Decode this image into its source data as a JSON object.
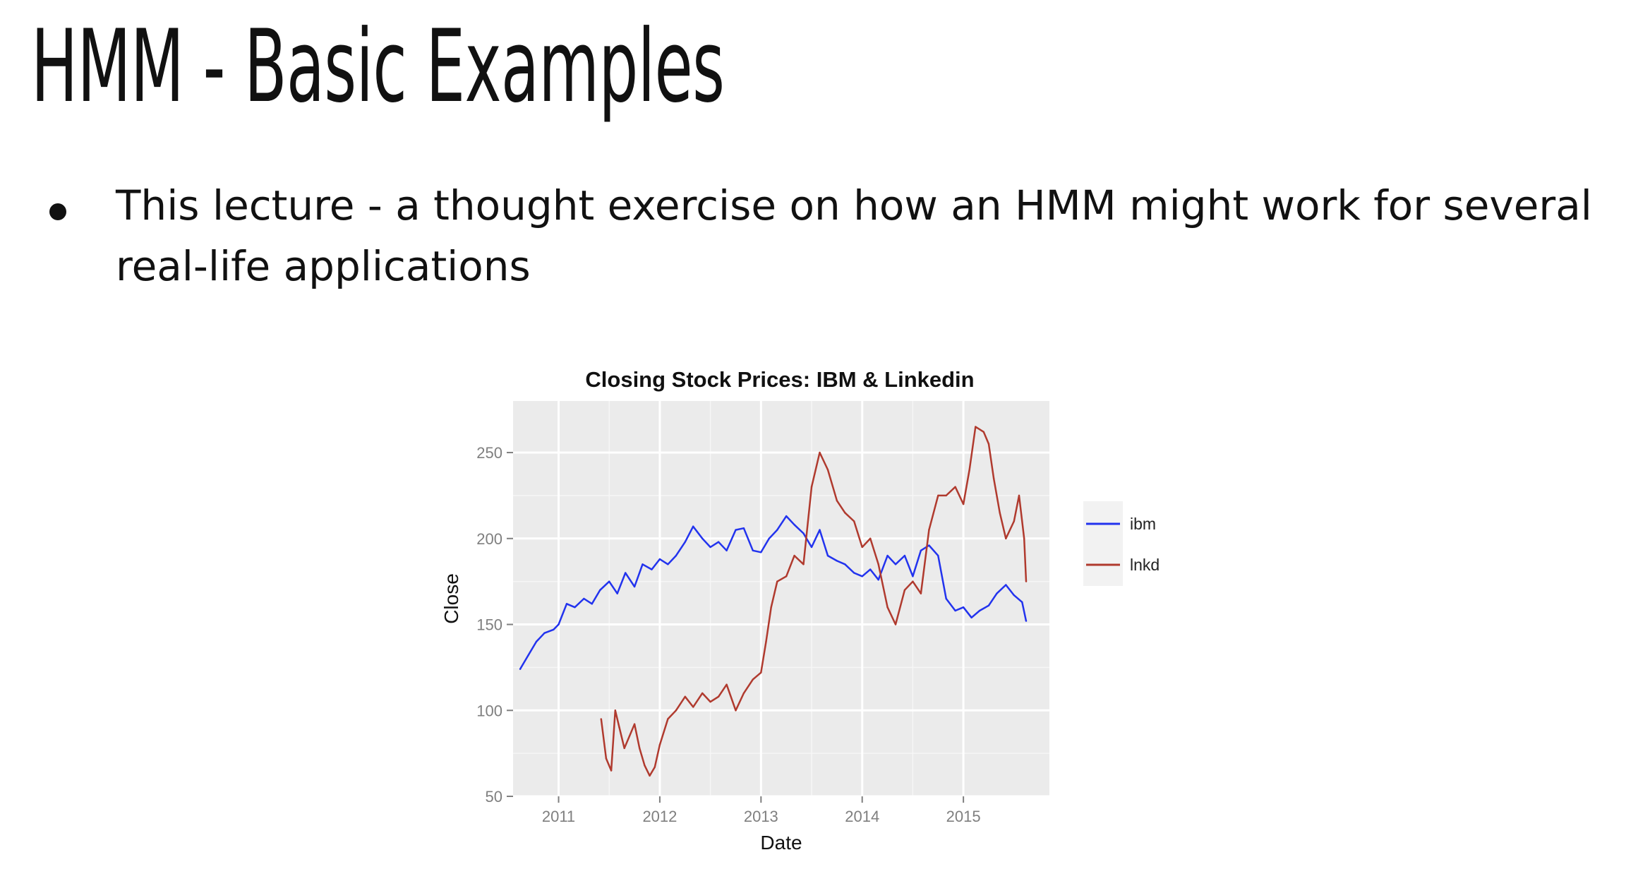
{
  "slide": {
    "title": "HMM - Basic Examples",
    "bullets": [
      "This lecture - a thought exercise on how an HMM might work for several real-life applications"
    ]
  },
  "colors": {
    "ibm": "#2233ee",
    "lnkd": "#b03a2e",
    "panel": "#ebebeb",
    "grid": "#ffffff"
  },
  "chart_data": {
    "type": "line",
    "title": "Closing Stock Prices: IBM & Linkedin",
    "xlabel": "Date",
    "ylabel": "Close",
    "xlim": [
      2010.55,
      2015.85
    ],
    "ylim": [
      50,
      280
    ],
    "xticks": [
      2011,
      2012,
      2013,
      2014,
      2015
    ],
    "xtick_labels": [
      "2011",
      "2012",
      "2013",
      "2014",
      "2015"
    ],
    "yticks": [
      50,
      100,
      150,
      200,
      250
    ],
    "ytick_labels": [
      "50",
      "100",
      "150",
      "200",
      "250"
    ],
    "grid": true,
    "legend": "right",
    "series": [
      {
        "name": "ibm",
        "color": "#2233ee",
        "x": [
          2010.62,
          2010.7,
          2010.78,
          2010.86,
          2010.95,
          2011.0,
          2011.08,
          2011.16,
          2011.25,
          2011.33,
          2011.41,
          2011.5,
          2011.58,
          2011.66,
          2011.75,
          2011.83,
          2011.92,
          2012.0,
          2012.08,
          2012.16,
          2012.25,
          2012.33,
          2012.42,
          2012.5,
          2012.58,
          2012.66,
          2012.75,
          2012.83,
          2012.92,
          2013.0,
          2013.08,
          2013.16,
          2013.25,
          2013.33,
          2013.42,
          2013.5,
          2013.58,
          2013.66,
          2013.75,
          2013.83,
          2013.92,
          2014.0,
          2014.08,
          2014.16,
          2014.25,
          2014.33,
          2014.42,
          2014.5,
          2014.58,
          2014.66,
          2014.75,
          2014.83,
          2014.92,
          2015.0,
          2015.08,
          2015.16,
          2015.25,
          2015.33,
          2015.42,
          2015.5,
          2015.58,
          2015.62
        ],
        "values": [
          124,
          132,
          140,
          145,
          147,
          150,
          162,
          160,
          165,
          162,
          170,
          175,
          168,
          180,
          172,
          185,
          182,
          188,
          185,
          190,
          198,
          207,
          200,
          195,
          198,
          193,
          205,
          206,
          193,
          192,
          200,
          205,
          213,
          208,
          203,
          195,
          205,
          190,
          187,
          185,
          180,
          178,
          182,
          176,
          190,
          185,
          190,
          178,
          193,
          196,
          190,
          165,
          158,
          160,
          154,
          158,
          161,
          168,
          173,
          167,
          163,
          152
        ]
      },
      {
        "name": "lnkd",
        "color": "#b03a2e",
        "x": [
          2011.42,
          2011.47,
          2011.52,
          2011.56,
          2011.6,
          2011.65,
          2011.7,
          2011.75,
          2011.8,
          2011.85,
          2011.9,
          2011.95,
          2012.0,
          2012.08,
          2012.16,
          2012.25,
          2012.33,
          2012.42,
          2012.5,
          2012.58,
          2012.66,
          2012.75,
          2012.83,
          2012.92,
          2013.0,
          2013.05,
          2013.1,
          2013.16,
          2013.25,
          2013.33,
          2013.42,
          2013.5,
          2013.58,
          2013.66,
          2013.75,
          2013.83,
          2013.92,
          2014.0,
          2014.08,
          2014.16,
          2014.25,
          2014.33,
          2014.42,
          2014.5,
          2014.58,
          2014.66,
          2014.75,
          2014.83,
          2014.92,
          2015.0,
          2015.06,
          2015.12,
          2015.2,
          2015.25,
          2015.3,
          2015.36,
          2015.42,
          2015.5,
          2015.55,
          2015.6,
          2015.62
        ],
        "values": [
          95,
          72,
          65,
          100,
          90,
          78,
          85,
          92,
          78,
          68,
          62,
          67,
          80,
          95,
          100,
          108,
          102,
          110,
          105,
          108,
          115,
          100,
          110,
          118,
          122,
          140,
          160,
          175,
          178,
          190,
          185,
          230,
          250,
          240,
          222,
          215,
          210,
          195,
          200,
          185,
          160,
          150,
          170,
          175,
          168,
          205,
          225,
          225,
          230,
          220,
          240,
          265,
          262,
          255,
          235,
          215,
          200,
          210,
          225,
          200,
          175
        ]
      }
    ]
  }
}
